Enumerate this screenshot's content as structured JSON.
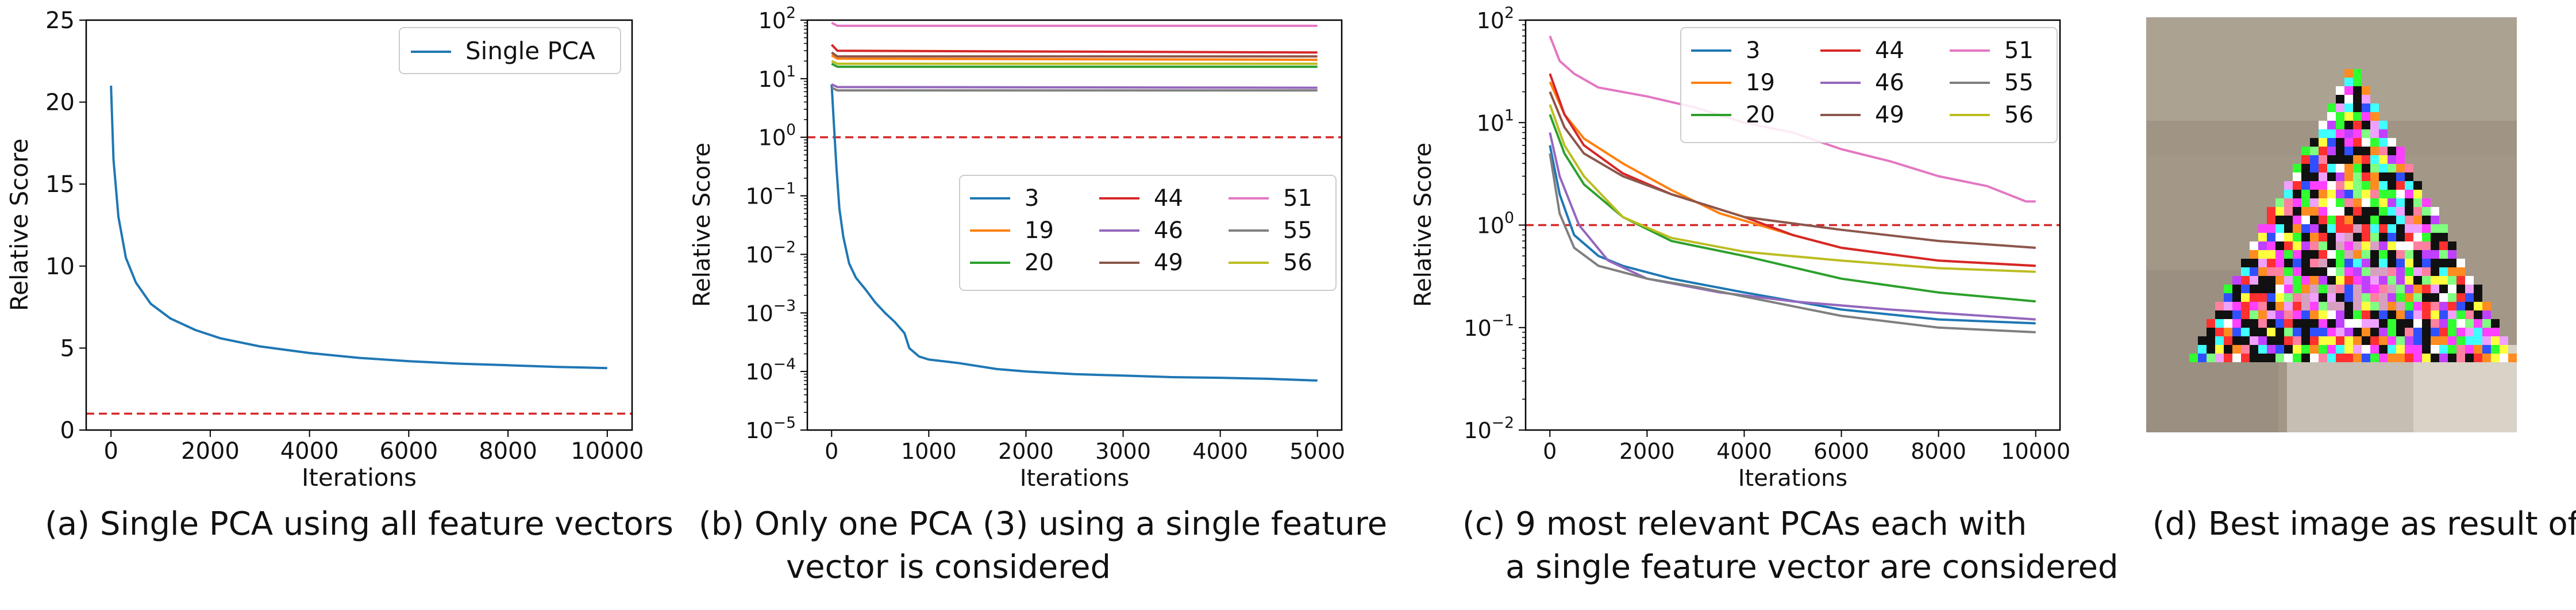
{
  "colors": {
    "C3": "#1f77b4",
    "C19": "#ff7f0e",
    "C20": "#2ca02c",
    "C44": "#d62728",
    "C46": "#9467bd",
    "C49": "#8c564b",
    "C51": "#e377c2",
    "C55": "#7f7f7f",
    "C56": "#bcbd22",
    "ref": "#d62728"
  },
  "captions": {
    "a": "(a) Single PCA using all feature vectors",
    "b1": "(b) Only one PCA (3) using a single feature",
    "b2": "vector is considered",
    "c1": "(c) 9 most relevant PCAs each with",
    "c2": "a single feature vector are considered",
    "d": "(d) Best image as result of (a)"
  },
  "chart_data": [
    {
      "id": "a",
      "type": "line",
      "xlabel": "Iterations",
      "ylabel": "Relative Score",
      "xlim": [
        -500,
        10500
      ],
      "ylim": [
        0,
        25
      ],
      "xticks": [
        0,
        2000,
        4000,
        6000,
        8000,
        10000
      ],
      "yticks": [
        0,
        5,
        10,
        15,
        20,
        25
      ],
      "legend_position": "upper right",
      "reference_line": {
        "y": 1,
        "style": "dashed"
      },
      "series": [
        {
          "name": "Single PCA",
          "color_key": "C3",
          "x": [
            0,
            50,
            150,
            300,
            500,
            800,
            1200,
            1700,
            2200,
            3000,
            4000,
            5000,
            6000,
            7000,
            8000,
            9000,
            10000
          ],
          "y": [
            21,
            16.5,
            13,
            10.5,
            9,
            7.7,
            6.8,
            6.1,
            5.6,
            5.1,
            4.7,
            4.4,
            4.2,
            4.05,
            3.95,
            3.85,
            3.78
          ]
        }
      ]
    },
    {
      "id": "b",
      "type": "line",
      "yscale": "log",
      "xlabel": "Iterations",
      "ylabel": "Relative Score",
      "xlim": [
        -250,
        5250
      ],
      "ylim": [
        1e-05,
        100
      ],
      "xticks": [
        0,
        1000,
        2000,
        3000,
        4000,
        5000
      ],
      "yticks": [
        1e-05,
        0.0001,
        0.001,
        0.01,
        0.1,
        1,
        10,
        100
      ],
      "ytick_exponents": [
        "−5",
        "−4",
        "−3",
        "−2",
        "−1",
        "0",
        "1",
        "2"
      ],
      "legend_position": "center right",
      "reference_line": {
        "y": 1,
        "style": "dashed"
      },
      "series": [
        {
          "name": "3",
          "color_key": "C3",
          "x": [
            0,
            25,
            50,
            80,
            120,
            180,
            250,
            350,
            450,
            550,
            650,
            750,
            800,
            900,
            1000,
            1300,
            1700,
            2000,
            2500,
            3000,
            3500,
            4000,
            4500,
            5000
          ],
          "y": [
            8,
            1.5,
            0.3,
            0.06,
            0.02,
            0.007,
            0.004,
            0.0025,
            0.0015,
            0.001,
            0.0007,
            0.00045,
            0.00025,
            0.00018,
            0.00016,
            0.00014,
            0.00011,
            0.0001,
            9e-05,
            8.5e-05,
            8e-05,
            7.8e-05,
            7.5e-05,
            7e-05
          ]
        },
        {
          "name": "19",
          "color_key": "C19",
          "x": [
            0,
            60,
            5000
          ],
          "y": [
            25,
            22,
            21
          ]
        },
        {
          "name": "20",
          "color_key": "C20",
          "x": [
            0,
            60,
            5000
          ],
          "y": [
            18,
            16,
            16
          ]
        },
        {
          "name": "44",
          "color_key": "C44",
          "x": [
            0,
            60,
            5000
          ],
          "y": [
            38,
            30,
            28
          ]
        },
        {
          "name": "46",
          "color_key": "C46",
          "x": [
            0,
            60,
            5000
          ],
          "y": [
            8,
            7.2,
            7
          ]
        },
        {
          "name": "49",
          "color_key": "C49",
          "x": [
            0,
            60,
            5000
          ],
          "y": [
            28,
            24,
            24
          ]
        },
        {
          "name": "51",
          "color_key": "C51",
          "x": [
            0,
            60,
            5000
          ],
          "y": [
            90,
            80,
            80
          ]
        },
        {
          "name": "55",
          "color_key": "C55",
          "x": [
            0,
            60,
            5000
          ],
          "y": [
            7,
            6.3,
            6.3
          ]
        },
        {
          "name": "56",
          "color_key": "C56",
          "x": [
            0,
            60,
            5000
          ],
          "y": [
            20,
            18,
            18
          ]
        }
      ]
    },
    {
      "id": "c",
      "type": "line",
      "yscale": "log",
      "xlabel": "Iterations",
      "ylabel": "Relative Score",
      "xlim": [
        -500,
        10500
      ],
      "ylim": [
        0.01,
        100
      ],
      "xticks": [
        0,
        2000,
        4000,
        6000,
        8000,
        10000
      ],
      "yticks": [
        0.01,
        0.1,
        1,
        10,
        100
      ],
      "ytick_exponents": [
        "−2",
        "−1",
        "0",
        "1",
        "2"
      ],
      "legend_position": "upper right",
      "reference_line": {
        "y": 1,
        "style": "dashed"
      },
      "series": [
        {
          "name": "3",
          "color_key": "C3",
          "x": [
            0,
            200,
            500,
            1000,
            1500,
            2500,
            4000,
            6000,
            8000,
            10000
          ],
          "y": [
            6,
            2,
            0.8,
            0.5,
            0.4,
            0.3,
            0.22,
            0.15,
            0.12,
            0.11
          ]
        },
        {
          "name": "19",
          "color_key": "C19",
          "x": [
            0,
            300,
            700,
            1500,
            2500,
            3500,
            5000,
            6000,
            8000,
            10000
          ],
          "y": [
            25,
            12,
            7,
            4,
            2.2,
            1.3,
            0.8,
            0.6,
            0.45,
            0.4
          ]
        },
        {
          "name": "20",
          "color_key": "C20",
          "x": [
            0,
            300,
            700,
            1500,
            2500,
            4000,
            6000,
            8000,
            10000
          ],
          "y": [
            12,
            5,
            2.5,
            1.2,
            0.7,
            0.5,
            0.3,
            0.22,
            0.18
          ]
        },
        {
          "name": "44",
          "color_key": "C44",
          "x": [
            0,
            300,
            700,
            1500,
            2500,
            4000,
            5000,
            6000,
            8000,
            10000
          ],
          "y": [
            30,
            12,
            6,
            3.2,
            2,
            1.2,
            0.8,
            0.6,
            0.45,
            0.4
          ]
        },
        {
          "name": "46",
          "color_key": "C46",
          "x": [
            0,
            200,
            600,
            1200,
            2000,
            3500,
            5000,
            7000,
            10000
          ],
          "y": [
            8,
            3,
            1,
            0.45,
            0.3,
            0.22,
            0.18,
            0.15,
            0.12
          ]
        },
        {
          "name": "49",
          "color_key": "C49",
          "x": [
            0,
            300,
            700,
            1500,
            2500,
            4000,
            6000,
            8000,
            10000
          ],
          "y": [
            20,
            9,
            5,
            3,
            2,
            1.2,
            0.9,
            0.7,
            0.6
          ]
        },
        {
          "name": "51",
          "color_key": "C51",
          "x": [
            0,
            200,
            500,
            1000,
            2000,
            3000,
            4000,
            5000,
            6000,
            7000,
            8000,
            9000,
            9800,
            10000
          ],
          "y": [
            70,
            40,
            30,
            22,
            18,
            14,
            10,
            8,
            5.5,
            4.2,
            3,
            2.4,
            1.7,
            1.7
          ]
        },
        {
          "name": "55",
          "color_key": "C55",
          "x": [
            0,
            200,
            500,
            1000,
            2000,
            3000,
            4500,
            6000,
            8000,
            10000
          ],
          "y": [
            5,
            1.3,
            0.6,
            0.4,
            0.3,
            0.25,
            0.18,
            0.13,
            0.1,
            0.09
          ]
        },
        {
          "name": "56",
          "color_key": "C56",
          "x": [
            0,
            300,
            700,
            1500,
            2500,
            4000,
            6000,
            8000,
            10000
          ],
          "y": [
            15,
            6,
            3,
            1.2,
            0.75,
            0.55,
            0.45,
            0.38,
            0.35
          ]
        }
      ]
    }
  ],
  "image_panel": {
    "description_icon": "pixel-triangle-image"
  }
}
